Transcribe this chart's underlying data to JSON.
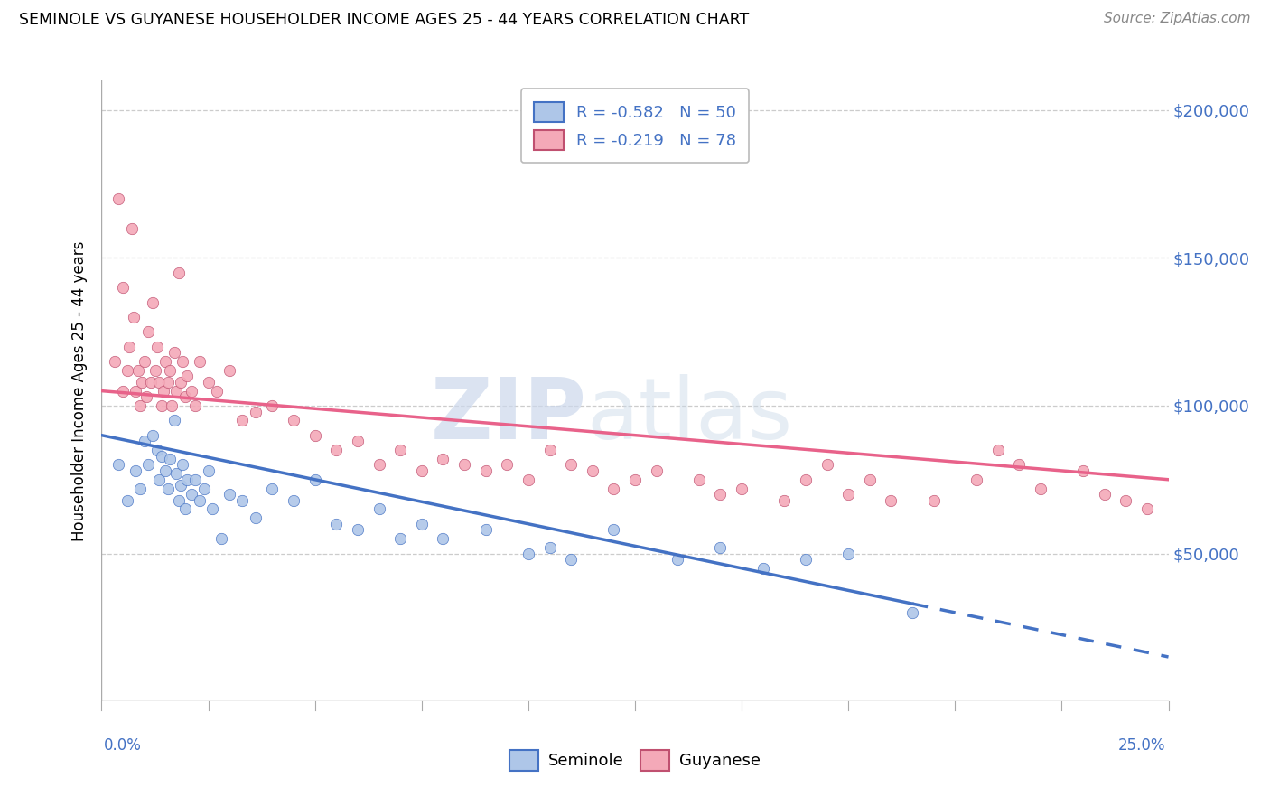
{
  "title": "SEMINOLE VS GUYANESE HOUSEHOLDER INCOME AGES 25 - 44 YEARS CORRELATION CHART",
  "source": "Source: ZipAtlas.com",
  "ylabel": "Householder Income Ages 25 - 44 years",
  "xlim_min": 0.0,
  "xlim_max": 25.0,
  "ylim_min": 0,
  "ylim_max": 210000,
  "yticks": [
    0,
    50000,
    100000,
    150000,
    200000
  ],
  "ytick_labels": [
    "",
    "$50,000",
    "$100,000",
    "$150,000",
    "$200,000"
  ],
  "legend1_text": "R = -0.582   N = 50",
  "legend2_text": "R = -0.219   N = 78",
  "seminole_color": "#aec6e8",
  "guyanese_color": "#f4a9b8",
  "seminole_line_color": "#4472c4",
  "guyanese_line_color": "#e8628a",
  "seminole_edge_color": "#4472c4",
  "guyanese_edge_color": "#c05070",
  "background_color": "#ffffff",
  "seminole_reg_x0": 0,
  "seminole_reg_y0": 90000,
  "seminole_reg_x1": 25,
  "seminole_reg_y1": 15000,
  "guyanese_reg_x0": 0,
  "guyanese_reg_y0": 105000,
  "guyanese_reg_x1": 25,
  "guyanese_reg_y1": 75000,
  "seminole_dash_start_x": 19.0,
  "seminole_x": [
    0.4,
    0.6,
    0.8,
    0.9,
    1.0,
    1.1,
    1.2,
    1.3,
    1.35,
    1.4,
    1.5,
    1.55,
    1.6,
    1.7,
    1.75,
    1.8,
    1.85,
    1.9,
    1.95,
    2.0,
    2.1,
    2.2,
    2.3,
    2.4,
    2.5,
    2.6,
    2.8,
    3.0,
    3.3,
    3.6,
    4.0,
    4.5,
    5.0,
    5.5,
    6.0,
    6.5,
    7.0,
    7.5,
    8.0,
    9.0,
    10.0,
    10.5,
    11.0,
    12.0,
    13.5,
    14.5,
    15.5,
    16.5,
    17.5,
    19.0
  ],
  "seminole_y": [
    80000,
    68000,
    78000,
    72000,
    88000,
    80000,
    90000,
    85000,
    75000,
    83000,
    78000,
    72000,
    82000,
    95000,
    77000,
    68000,
    73000,
    80000,
    65000,
    75000,
    70000,
    75000,
    68000,
    72000,
    78000,
    65000,
    55000,
    70000,
    68000,
    62000,
    72000,
    68000,
    75000,
    60000,
    58000,
    65000,
    55000,
    60000,
    55000,
    58000,
    50000,
    52000,
    48000,
    58000,
    48000,
    52000,
    45000,
    48000,
    50000,
    30000
  ],
  "guyanese_x": [
    0.3,
    0.5,
    0.6,
    0.65,
    0.7,
    0.75,
    0.8,
    0.85,
    0.9,
    0.95,
    1.0,
    1.05,
    1.1,
    1.15,
    1.2,
    1.25,
    1.3,
    1.35,
    1.4,
    1.45,
    1.5,
    1.55,
    1.6,
    1.65,
    1.7,
    1.75,
    1.8,
    1.85,
    1.9,
    1.95,
    2.0,
    2.1,
    2.2,
    2.3,
    2.5,
    2.7,
    3.0,
    3.3,
    3.6,
    4.0,
    4.5,
    5.0,
    5.5,
    6.0,
    6.5,
    7.0,
    7.5,
    8.0,
    8.5,
    9.0,
    9.5,
    10.0,
    10.5,
    11.0,
    11.5,
    12.0,
    12.5,
    13.0,
    14.0,
    14.5,
    15.0,
    16.0,
    16.5,
    17.0,
    17.5,
    18.0,
    18.5,
    19.5,
    20.5,
    21.0,
    21.5,
    22.0,
    23.0,
    23.5,
    24.0,
    24.5,
    0.4,
    0.5
  ],
  "guyanese_y": [
    115000,
    105000,
    112000,
    120000,
    160000,
    130000,
    105000,
    112000,
    100000,
    108000,
    115000,
    103000,
    125000,
    108000,
    135000,
    112000,
    120000,
    108000,
    100000,
    105000,
    115000,
    108000,
    112000,
    100000,
    118000,
    105000,
    145000,
    108000,
    115000,
    103000,
    110000,
    105000,
    100000,
    115000,
    108000,
    105000,
    112000,
    95000,
    98000,
    100000,
    95000,
    90000,
    85000,
    88000,
    80000,
    85000,
    78000,
    82000,
    80000,
    78000,
    80000,
    75000,
    85000,
    80000,
    78000,
    72000,
    75000,
    78000,
    75000,
    70000,
    72000,
    68000,
    75000,
    80000,
    70000,
    75000,
    68000,
    68000,
    75000,
    85000,
    80000,
    72000,
    78000,
    70000,
    68000,
    65000,
    170000,
    140000
  ]
}
